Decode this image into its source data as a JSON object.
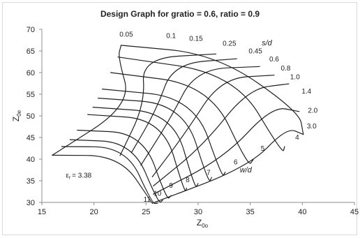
{
  "chart_data": {
    "type": "line",
    "title": "Design Graph for gratio = 0.6, ratio = 0.9",
    "xlabel": "Z",
    "xlabel_sub": "0o",
    "ylabel": "Z",
    "ylabel_sub": "0e",
    "xlim": [
      15,
      45
    ],
    "ylim": [
      30,
      70
    ],
    "xticks": [
      15,
      20,
      25,
      30,
      35,
      40,
      45
    ],
    "yticks": [
      30,
      35,
      40,
      45,
      50,
      55,
      60,
      65,
      70
    ],
    "grid": false,
    "annotation": {
      "symbol": "ε",
      "subscript": "r",
      "value": "= 3.38",
      "x": 17.3,
      "y": 35.7
    },
    "family_labels": [
      {
        "text": "s/d",
        "x": 36.1,
        "y": 66.3
      },
      {
        "text": "w/d",
        "x": 34.0,
        "y": 36.9
      }
    ],
    "sd_levels": [
      "0.05",
      "0.1",
      "0.15",
      "0.25",
      "0.45",
      "0.6",
      "0.8",
      "1.0",
      "1.4",
      "2.0",
      "3.0"
    ],
    "wd_levels": [
      "11",
      "10",
      "9",
      "8",
      "7",
      "6",
      "5",
      "4"
    ],
    "sd_label_points": [
      {
        "x": 23.1,
        "y": 68.3
      },
      {
        "x": 27.4,
        "y": 68.0
      },
      {
        "x": 29.8,
        "y": 67.3
      },
      {
        "x": 33.0,
        "y": 66.2
      },
      {
        "x": 35.5,
        "y": 64.4
      },
      {
        "x": 37.3,
        "y": 62.6
      },
      {
        "x": 38.4,
        "y": 60.5
      },
      {
        "x": 39.3,
        "y": 58.5
      },
      {
        "x": 40.4,
        "y": 55.2
      },
      {
        "x": 41.0,
        "y": 50.7
      },
      {
        "x": 40.9,
        "y": 47.1
      }
    ],
    "wd_label_points": [
      {
        "x": 25.1,
        "y": 30.2
      },
      {
        "x": 26.1,
        "y": 31.5
      },
      {
        "x": 27.4,
        "y": 33.4
      },
      {
        "x": 29.0,
        "y": 34.7
      },
      {
        "x": 31.0,
        "y": 36.4
      },
      {
        "x": 33.6,
        "y": 38.8
      },
      {
        "x": 36.2,
        "y": 41.9
      },
      {
        "x": 39.5,
        "y": 44.5
      }
    ],
    "series": [
      {
        "family": "s/d",
        "value": "0.05",
        "points": [
          [
            16.0,
            40.9
          ],
          [
            22.5,
            40.8
          ],
          [
            25.6,
            29.8
          ]
        ]
      },
      {
        "family": "s/d",
        "value": "0.1",
        "points": [
          [
            16.9,
            42.9
          ],
          [
            23.1,
            42.8
          ],
          [
            25.6,
            29.7
          ],
          [
            26.1,
            29.8
          ]
        ]
      },
      {
        "family": "s/d",
        "value": "0.15",
        "points": [
          [
            17.7,
            44.5
          ],
          [
            23.7,
            43.9
          ],
          [
            26.2,
            29.7
          ],
          [
            26.6,
            30.5
          ]
        ]
      },
      {
        "family": "s/d",
        "value": "0.25",
        "points": [
          [
            18.4,
            46.7
          ],
          [
            24.7,
            46.0
          ],
          [
            27.0,
            30.5
          ],
          [
            27.4,
            31.6
          ]
        ]
      },
      {
        "family": "s/d",
        "value": "0.45",
        "points": [
          [
            19.4,
            50.3
          ],
          [
            26.6,
            49.2
          ],
          [
            28.7,
            32.2
          ],
          [
            28.9,
            33.3
          ]
        ]
      },
      {
        "family": "s/d",
        "value": "0.6",
        "points": [
          [
            19.9,
            52.0
          ],
          [
            27.6,
            50.7
          ],
          [
            29.7,
            33.1
          ],
          [
            30.0,
            34.4
          ]
        ]
      },
      {
        "family": "s/d",
        "value": "0.8",
        "points": [
          [
            20.4,
            54.1
          ],
          [
            28.6,
            52.7
          ],
          [
            31.0,
            34.4
          ],
          [
            31.3,
            35.8
          ]
        ]
      },
      {
        "family": "s/d",
        "value": "1.0",
        "points": [
          [
            20.8,
            56.2
          ],
          [
            29.6,
            54.2
          ],
          [
            32.3,
            35.7
          ],
          [
            32.6,
            37.0
          ]
        ]
      },
      {
        "family": "s/d",
        "value": "1.4",
        "points": [
          [
            21.6,
            60.0
          ],
          [
            31.1,
            57.1
          ],
          [
            34.8,
            38.3
          ],
          [
            35.3,
            39.9
          ]
        ]
      },
      {
        "family": "s/d",
        "value": "2.0",
        "points": [
          [
            22.3,
            63.6
          ],
          [
            33.5,
            59.7
          ],
          [
            38.1,
            41.2
          ],
          [
            38.3,
            42.9
          ]
        ]
      },
      {
        "family": "s/d",
        "value": "3.0",
        "points": [
          [
            22.6,
            66.3
          ],
          [
            31.7,
            64.3
          ],
          [
            39.7,
            51.0
          ],
          [
            40.1,
            45.7
          ]
        ]
      },
      {
        "family": "w/d",
        "value": "11",
        "points": [
          [
            16.0,
            40.9
          ],
          [
            23.6,
            52.6
          ],
          [
            22.3,
            63.6
          ],
          [
            22.6,
            66.3
          ]
        ]
      },
      {
        "family": "w/d",
        "value": "10",
        "points": [
          [
            22.5,
            40.8
          ],
          [
            24.9,
            52.8
          ],
          [
            24.6,
            63.3
          ],
          [
            31.7,
            64.3
          ]
        ]
      },
      {
        "family": "w/d",
        "value": "9",
        "points": [
          [
            23.6,
            41.5
          ],
          [
            26.0,
            51.4
          ],
          [
            27.6,
            62.1
          ],
          [
            33.7,
            63.2
          ]
        ]
      },
      {
        "family": "w/d",
        "value": "8",
        "points": [
          [
            24.5,
            38.6
          ],
          [
            27.3,
            49.2
          ],
          [
            29.8,
            60.8
          ],
          [
            35.9,
            61.4
          ]
        ]
      },
      {
        "family": "w/d",
        "value": "7",
        "points": [
          [
            25.6,
            35.9
          ],
          [
            28.8,
            46.1
          ],
          [
            32.2,
            58.7
          ],
          [
            37.3,
            59.4
          ]
        ]
      },
      {
        "family": "w/d",
        "value": "6",
        "points": [
          [
            25.7,
            33.8
          ],
          [
            30.5,
            43.2
          ],
          [
            34.8,
            56.2
          ],
          [
            38.7,
            57.4
          ]
        ]
      },
      {
        "family": "w/d",
        "value": "5",
        "points": [
          [
            25.7,
            31.9
          ],
          [
            32.5,
            40.3
          ],
          [
            37.1,
            52.2
          ],
          [
            39.7,
            51.0
          ]
        ]
      },
      {
        "family": "w/d",
        "value": "4",
        "points": [
          [
            25.6,
            29.8
          ],
          [
            34.9,
            38.3
          ],
          [
            38.5,
            47.3
          ],
          [
            40.1,
            45.7
          ]
        ]
      }
    ]
  }
}
